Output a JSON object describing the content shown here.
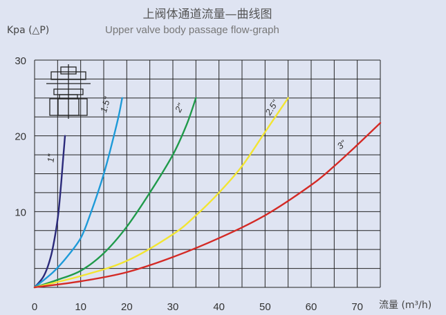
{
  "header": {
    "title_cn": "上阀体通道流量—曲线图",
    "title_en": "Upper valve body passage flow-graph"
  },
  "colors": {
    "background": "#dfe4f2",
    "grid": "#222222",
    "series_1": "#2b2a7a",
    "series_1_5": "#1d9ad8",
    "series_2": "#1f9a4a",
    "series_2_5": "#f2e531",
    "series_3": "#d42a25"
  },
  "icons": [
    "valve-body-diagram-icon"
  ],
  "chart_data": {
    "type": "line",
    "title": "上阀体通道流量—曲线图",
    "subtitle": "Upper valve body passage flow-graph",
    "ylabel": "Kpa (△P)",
    "xlabel": "流量 (m³/h)",
    "xlim": [
      0,
      75
    ],
    "ylim": [
      0,
      30
    ],
    "x_ticks": [
      0,
      10,
      20,
      30,
      40,
      50,
      60,
      70
    ],
    "y_ticks": [
      10,
      20,
      30
    ],
    "grid": true,
    "series": [
      {
        "name": "1\"",
        "color": "#2b2a7a",
        "x": [
          0,
          2,
          3.5,
          4.5,
          5.2,
          5.8,
          6.2,
          6.6
        ],
        "y": [
          0,
          1.5,
          4,
          7,
          10,
          14,
          17,
          20
        ]
      },
      {
        "name": "1.5\"",
        "color": "#1d9ad8",
        "x": [
          0,
          4,
          7,
          10,
          12,
          14,
          15.5,
          17,
          18.2,
          19
        ],
        "y": [
          0,
          2,
          4,
          6.5,
          9.5,
          13,
          16,
          19.5,
          22.5,
          25
        ]
      },
      {
        "name": "2\"",
        "color": "#1f9a4a",
        "x": [
          0,
          5,
          10,
          15,
          20,
          25,
          30,
          33,
          35
        ],
        "y": [
          0,
          1,
          2.2,
          4.5,
          8,
          12.5,
          17.5,
          21.5,
          25
        ]
      },
      {
        "name": "2.5\"",
        "color": "#f2e531",
        "x": [
          0,
          10,
          20,
          30,
          35,
          40,
          45,
          50,
          55
        ],
        "y": [
          0,
          1.5,
          3.5,
          7,
          9.5,
          12.5,
          16,
          20.5,
          25
        ]
      },
      {
        "name": "3\"",
        "color": "#d42a25",
        "x": [
          0,
          10,
          20,
          30,
          40,
          50,
          60,
          65,
          70,
          75
        ],
        "y": [
          0,
          0.8,
          2,
          4,
          6.5,
          9.5,
          13.5,
          16,
          18.8,
          21.7
        ]
      }
    ]
  }
}
